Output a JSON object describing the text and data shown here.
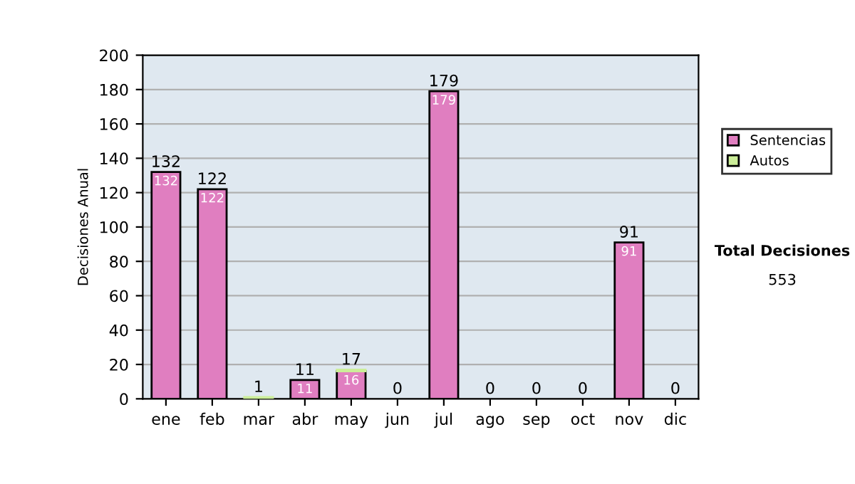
{
  "chart_data": {
    "type": "bar",
    "stacked": true,
    "ylabel": "Decisiones Anual",
    "categories": [
      "ene",
      "feb",
      "mar",
      "abr",
      "may",
      "jun",
      "jul",
      "ago",
      "sep",
      "oct",
      "nov",
      "dic"
    ],
    "series": [
      {
        "name": "Sentencias",
        "color": "#e07ec0",
        "values": [
          132,
          122,
          0,
          11,
          16,
          0,
          179,
          0,
          0,
          0,
          91,
          0
        ],
        "value_labels": [
          "132",
          "122",
          null,
          "11",
          "16",
          null,
          "179",
          null,
          null,
          null,
          "91",
          null
        ]
      },
      {
        "name": "Autos",
        "color": "#ccee99",
        "values": [
          0,
          0,
          1,
          0,
          1,
          0,
          0,
          0,
          0,
          0,
          0,
          0
        ]
      }
    ],
    "totals": [
      "132",
      "122",
      "1",
      "11",
      "17",
      "0",
      "179",
      "0",
      "0",
      "0",
      "91",
      "0"
    ],
    "ylim": [
      0,
      200
    ],
    "yticks": [
      0,
      20,
      40,
      60,
      80,
      100,
      120,
      140,
      160,
      180,
      200
    ],
    "grid": "y",
    "legend": "right",
    "annotations": [
      "Total Decisiones",
      "553"
    ]
  }
}
